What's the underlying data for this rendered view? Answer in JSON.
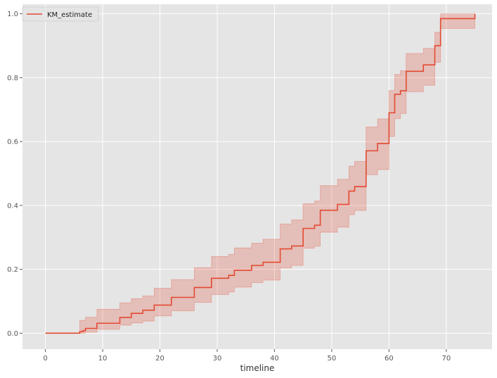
{
  "chart_data": {
    "type": "line",
    "title": "",
    "xlabel": "timeline",
    "ylabel": "",
    "xlim": [
      -4,
      78
    ],
    "ylim": [
      -0.05,
      1.03
    ],
    "xticks": [
      0,
      10,
      20,
      30,
      40,
      50,
      60,
      70
    ],
    "yticks": [
      0.0,
      0.2,
      0.4,
      0.6,
      0.8,
      1.0
    ],
    "xtick_labels": [
      "0",
      "10",
      "20",
      "30",
      "40",
      "50",
      "60",
      "70"
    ],
    "ytick_labels": [
      "0.0",
      "0.2",
      "0.4",
      "0.6",
      "0.8",
      "1.0"
    ],
    "grid": true,
    "legend_position": "top-left",
    "colors": {
      "plot_bg": "#E5E5E5",
      "grid": "#FFFFFF",
      "line": "#E24A33",
      "band": "#E24A33"
    },
    "series": [
      {
        "name": "KM_estimate",
        "step": "post",
        "x": [
          0,
          6,
          6.6,
          7,
          9,
          13,
          15,
          17,
          19,
          22,
          26,
          29,
          32,
          33,
          36,
          38,
          41,
          43,
          45,
          47,
          48,
          51,
          53,
          54,
          56,
          58,
          60,
          61,
          62,
          63,
          66,
          68,
          69,
          75
        ],
        "y": [
          0.0,
          0.005,
          0.008,
          0.015,
          0.031,
          0.049,
          0.062,
          0.072,
          0.088,
          0.112,
          0.143,
          0.172,
          0.181,
          0.197,
          0.212,
          0.222,
          0.264,
          0.273,
          0.328,
          0.338,
          0.385,
          0.403,
          0.445,
          0.459,
          0.571,
          0.594,
          0.69,
          0.748,
          0.759,
          0.82,
          0.84,
          0.9,
          0.985,
          1.0
        ],
        "ci_lower": [
          0.0,
          0.0,
          0.0,
          0.003,
          0.012,
          0.025,
          0.032,
          0.038,
          0.054,
          0.07,
          0.096,
          0.121,
          0.129,
          0.144,
          0.158,
          0.166,
          0.204,
          0.212,
          0.266,
          0.272,
          0.316,
          0.332,
          0.371,
          0.384,
          0.496,
          0.512,
          0.616,
          0.672,
          0.688,
          0.756,
          0.776,
          0.848,
          0.954,
          0.954
        ],
        "ci_upper": [
          0.0,
          0.04,
          0.04,
          0.05,
          0.075,
          0.095,
          0.108,
          0.117,
          0.141,
          0.168,
          0.205,
          0.24,
          0.247,
          0.267,
          0.282,
          0.294,
          0.342,
          0.355,
          0.405,
          0.414,
          0.462,
          0.482,
          0.523,
          0.538,
          0.646,
          0.671,
          0.76,
          0.81,
          0.822,
          0.876,
          0.892,
          0.942,
          1.0,
          1.0
        ]
      }
    ]
  }
}
